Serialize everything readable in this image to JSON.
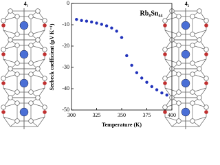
{
  "chart_data": {
    "type": "scatter",
    "title": "Rb₈Sn₄₄",
    "x_label": "Temperature (K)",
    "y_label": "Seebeck coefficient (μV K⁻¹)",
    "annotations": [
      "4₁",
      "4₂"
    ],
    "x": [
      305,
      310,
      315,
      320,
      325,
      330,
      335,
      340,
      345,
      350,
      355,
      360,
      365,
      370,
      375,
      380,
      385,
      390,
      395
    ],
    "series": [
      {
        "name": "Rb₈Sn₄₄",
        "color": "#2233bb",
        "values": [
          -7.5,
          -8,
          -8.3,
          -8.7,
          -9.2,
          -9.8,
          -10.5,
          -11.5,
          -13,
          -16,
          -24.5,
          -29,
          -32.5,
          -35,
          -37,
          -39,
          -40.5,
          -42,
          -43
        ]
      }
    ],
    "xlim": [
      300,
      400
    ],
    "xticks": [
      300,
      325,
      350,
      375,
      400
    ],
    "ylim": [
      -50,
      0
    ],
    "yticks": [
      0,
      -10,
      -20,
      -30,
      -40,
      -50
    ],
    "grid": false
  }
}
